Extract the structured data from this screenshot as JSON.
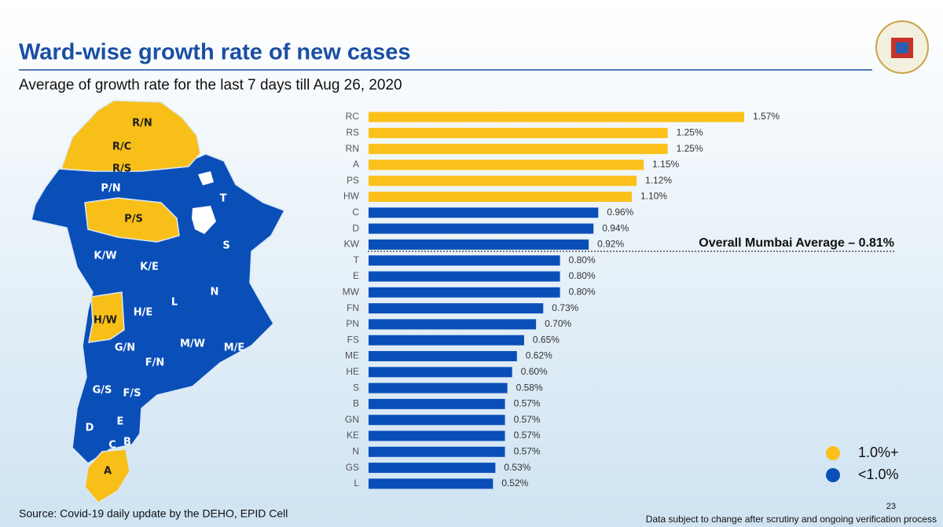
{
  "chart_data": {
    "type": "hbar",
    "title": "Ward-wise growth rate of new cases",
    "subtitle": "Average of growth rate for the last 7 days till Aug 26, 2020",
    "categories": [
      "RC",
      "RS",
      "RN",
      "A",
      "PS",
      "HW",
      "C",
      "D",
      "KW",
      "T",
      "E",
      "MW",
      "FN",
      "PN",
      "FS",
      "ME",
      "HE",
      "S",
      "B",
      "GN",
      "KE",
      "N",
      "GS",
      "L"
    ],
    "values": [
      1.57,
      1.25,
      1.25,
      1.15,
      1.12,
      1.1,
      0.96,
      0.94,
      0.92,
      0.8,
      0.8,
      0.8,
      0.73,
      0.7,
      0.65,
      0.62,
      0.6,
      0.58,
      0.57,
      0.57,
      0.57,
      0.57,
      0.53,
      0.52
    ],
    "value_labels": [
      "1.57%",
      "1.25%",
      "1.25%",
      "1.15%",
      "1.12%",
      "1.10%",
      "0.96%",
      "0.94%",
      "0.92%",
      "0.80%",
      "0.80%",
      "0.80%",
      "0.73%",
      "0.70%",
      "0.65%",
      "0.62%",
      "0.60%",
      "0.58%",
      "0.57%",
      "0.57%",
      "0.57%",
      "0.57%",
      "0.53%",
      "0.52%"
    ],
    "colors": [
      "#fbc11a",
      "#fbc11a",
      "#fbc11a",
      "#fbc11a",
      "#fbc11a",
      "#fbc11a",
      "#0a4fb8",
      "#0a4fb8",
      "#0a4fb8",
      "#0a4fb8",
      "#0a4fb8",
      "#0a4fb8",
      "#0a4fb8",
      "#0a4fb8",
      "#0a4fb8",
      "#0a4fb8",
      "#0a4fb8",
      "#0a4fb8",
      "#0a4fb8",
      "#0a4fb8",
      "#0a4fb8",
      "#0a4fb8",
      "#0a4fb8",
      "#0a4fb8"
    ],
    "annotation": "Overall Mumbai Average – 0.81%",
    "legend": [
      {
        "label": "1.0%+",
        "color": "#fbc11a"
      },
      {
        "label": "<1.0%",
        "color": "#0a4fb8"
      }
    ]
  },
  "map": {
    "wards": [
      "R/N",
      "R/C",
      "R/S",
      "P/N",
      "P/S",
      "T",
      "S",
      "K/W",
      "K/E",
      "N",
      "L",
      "H/W",
      "H/E",
      "M/W",
      "M/E",
      "G/N",
      "F/N",
      "G/S",
      "F/S",
      "E",
      "D",
      "C",
      "B",
      "A"
    ]
  },
  "source": "Source: Covid-19 daily update by the DEHO, EPID Cell",
  "page_number": "23",
  "disclaimer": "Data subject to change after scrutiny and ongoing verification process"
}
